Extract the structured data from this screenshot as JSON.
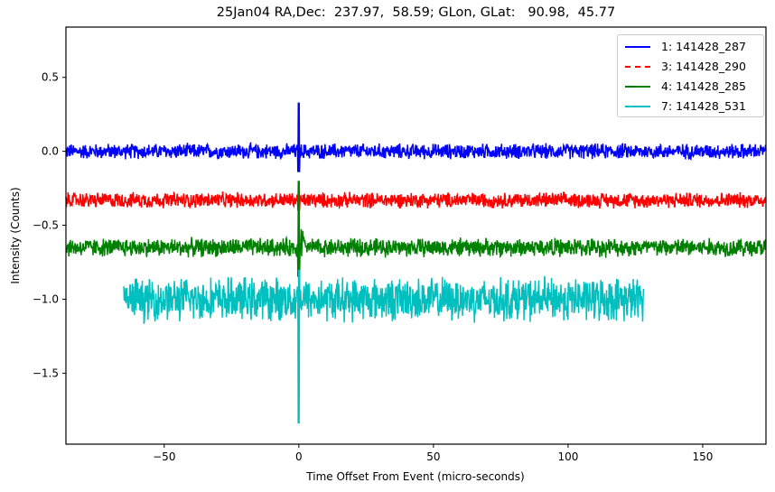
{
  "chart_data": {
    "type": "line",
    "title": "25Jan04 RA,Dec:  237.97,  58.59; GLon, GLat:   90.98,  45.77",
    "xlabel": "Time Offset From Event (micro-seconds)",
    "ylabel": "Intensity (Counts)",
    "xlim": [
      -86.5,
      173.5
    ],
    "ylim": [
      -1.98,
      0.84
    ],
    "xticks": [
      -50,
      0,
      50,
      100,
      150
    ],
    "xtick_labels": [
      "−50",
      "0",
      "50",
      "100",
      "150"
    ],
    "yticks": [
      0.5,
      0.0,
      -0.5,
      -1.0,
      -1.5
    ],
    "ytick_labels": [
      "0.5",
      "0.0",
      "−0.5",
      "−1.0",
      "−1.5"
    ],
    "grid": false,
    "legend_position": "upper right",
    "series": [
      {
        "name": "1: 141428_287",
        "color": "#0000ff",
        "linestyle": "solid",
        "x_start": -86.5,
        "x_end": 173.5,
        "baseline": 0.0,
        "noise_amplitude": 0.05,
        "event_peak": 0.33,
        "event_min": -0.14
      },
      {
        "name": "3: 141428_290",
        "color": "#ff0000",
        "linestyle": "dashdot",
        "x_start": -86.5,
        "x_end": 173.5,
        "baseline": -0.33,
        "noise_amplitude": 0.05,
        "event_peak": -0.2,
        "event_min": -0.4
      },
      {
        "name": "4: 141428_285",
        "color": "#008000",
        "linestyle": "solid",
        "x_start": -86.5,
        "x_end": 173.5,
        "baseline": -0.65,
        "noise_amplitude": 0.06,
        "event_peak": -0.2,
        "event_min": -0.85
      },
      {
        "name": "7: 141428_531",
        "color": "#00bfbf",
        "linestyle": "solid",
        "x_start": -65,
        "x_end": 128,
        "baseline": -1.0,
        "noise_amplitude": 0.14,
        "event_peak": -0.8,
        "event_min": -1.84
      }
    ]
  },
  "legend": {
    "items": [
      {
        "label": "1: 141428_287",
        "color": "#0000ff",
        "style": "solid"
      },
      {
        "label": "3: 141428_290",
        "color": "#ff0000",
        "style": "dashed"
      },
      {
        "label": "4: 141428_285",
        "color": "#008000",
        "style": "solid"
      },
      {
        "label": "7: 141428_531",
        "color": "#00bfbf",
        "style": "solid"
      }
    ]
  }
}
